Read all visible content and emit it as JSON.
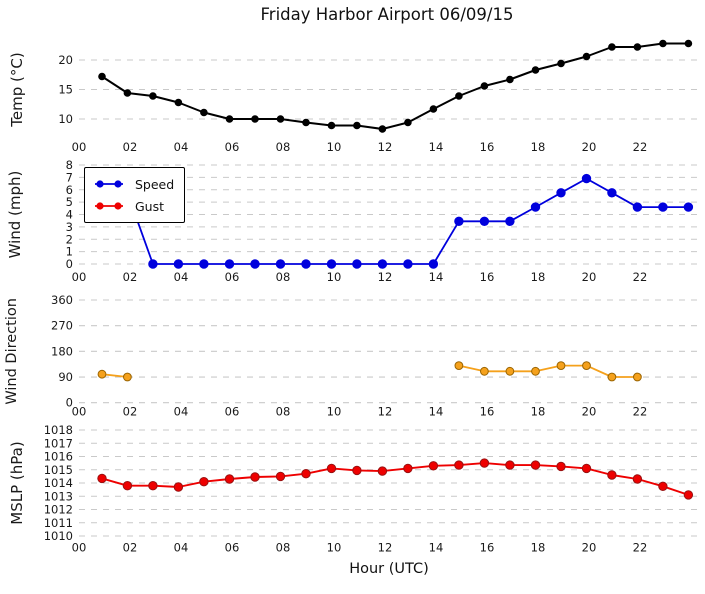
{
  "title": "Friday Harbor Airport 06/09/15",
  "xlabel": "Hour (UTC)",
  "x_tick_labels": [
    "00",
    "02",
    "04",
    "06",
    "08",
    "10",
    "12",
    "14",
    "16",
    "18",
    "20",
    "22"
  ],
  "x_hours": [
    0.9,
    1.9,
    2.9,
    3.9,
    4.9,
    5.9,
    6.9,
    7.9,
    8.9,
    9.9,
    10.9,
    11.9,
    12.9,
    13.9,
    14.9,
    15.9,
    16.9,
    17.9,
    18.9,
    19.9,
    20.9,
    21.9,
    22.9,
    23.9
  ],
  "legend": {
    "items": [
      {
        "label": "Speed",
        "color": "#0000dd"
      },
      {
        "label": "Gust",
        "color": "#ee0000"
      }
    ]
  },
  "colors": {
    "temperature": "#000000",
    "wind_speed": "#0000dd",
    "wind_gust": "#ee0000",
    "wind_direction": "#f5a11c",
    "wind_direction_edge": "#9a6400",
    "mslp": "#ee0000",
    "mslp_edge": "#991111",
    "gridline": "#c9c9c9"
  },
  "chart_data": [
    {
      "type": "line",
      "panel": "temperature",
      "ylabel": "Temp (°C)",
      "yticks": [
        10,
        15,
        20
      ],
      "ylim": [
        7.0,
        23.6
      ],
      "grid": true,
      "legend_position": "none",
      "series": [
        {
          "name": "Temp",
          "color": "#000000",
          "x_ref": "x_hours",
          "values": [
            17.2,
            14.4,
            13.9,
            12.8,
            11.1,
            10.0,
            10.0,
            10.0,
            9.4,
            8.9,
            8.9,
            8.3,
            9.4,
            11.7,
            13.9,
            15.6,
            16.7,
            18.3,
            19.4,
            20.6,
            22.2,
            22.2,
            22.8,
            22.8
          ]
        }
      ]
    },
    {
      "type": "line",
      "panel": "wind",
      "ylabel": "Wind (mph)",
      "yticks": [
        0,
        1,
        2,
        3,
        4,
        5,
        6,
        7,
        8
      ],
      "ylim": [
        -0.4,
        8.4
      ],
      "grid": true,
      "legend_position": "upper left",
      "series": [
        {
          "name": "Speed",
          "color": "#0000dd",
          "x_ref": "x_hours",
          "values": [
            5.75,
            5.75,
            0,
            0,
            0,
            0,
            0,
            0,
            0,
            0,
            0,
            0,
            0,
            0,
            3.45,
            3.45,
            3.45,
            4.6,
            5.75,
            6.9,
            5.75,
            4.6,
            4.6,
            4.6
          ]
        },
        {
          "name": "Gust",
          "color": "#ee0000",
          "x": [],
          "values": []
        }
      ]
    },
    {
      "type": "line",
      "panel": "wind-direction",
      "ylabel": "Wind Direction",
      "yticks": [
        0,
        90,
        180,
        270,
        360
      ],
      "ylim": [
        -20,
        380
      ],
      "grid": true,
      "legend_position": "none",
      "series": [
        {
          "name": "Direction",
          "color": "#f5a11c",
          "edge": "#9a6400",
          "x": [
            0.9,
            1.9,
            14.9,
            15.9,
            16.9,
            17.9,
            18.9,
            19.9,
            20.9,
            21.9
          ],
          "values": [
            100,
            90,
            130,
            110,
            110,
            110,
            130,
            130,
            90,
            90
          ]
        }
      ]
    },
    {
      "type": "line",
      "panel": "mslp",
      "ylabel": "MSLP (hPa)",
      "yticks": [
        1010,
        1011,
        1012,
        1013,
        1014,
        1015,
        1016,
        1017,
        1018
      ],
      "ylim": [
        1009.6,
        1018.4
      ],
      "grid": true,
      "legend_position": "none",
      "series": [
        {
          "name": "MSLP",
          "color": "#ee0000",
          "edge": "#991111",
          "x_ref": "x_hours",
          "values": [
            1014.35,
            1013.8,
            1013.8,
            1013.7,
            1014.1,
            1014.3,
            1014.45,
            1014.5,
            1014.7,
            1015.1,
            1014.95,
            1014.9,
            1015.1,
            1015.3,
            1015.35,
            1015.5,
            1015.35,
            1015.35,
            1015.25,
            1015.1,
            1014.6,
            1014.3,
            1013.75,
            1013.1
          ]
        }
      ]
    }
  ]
}
